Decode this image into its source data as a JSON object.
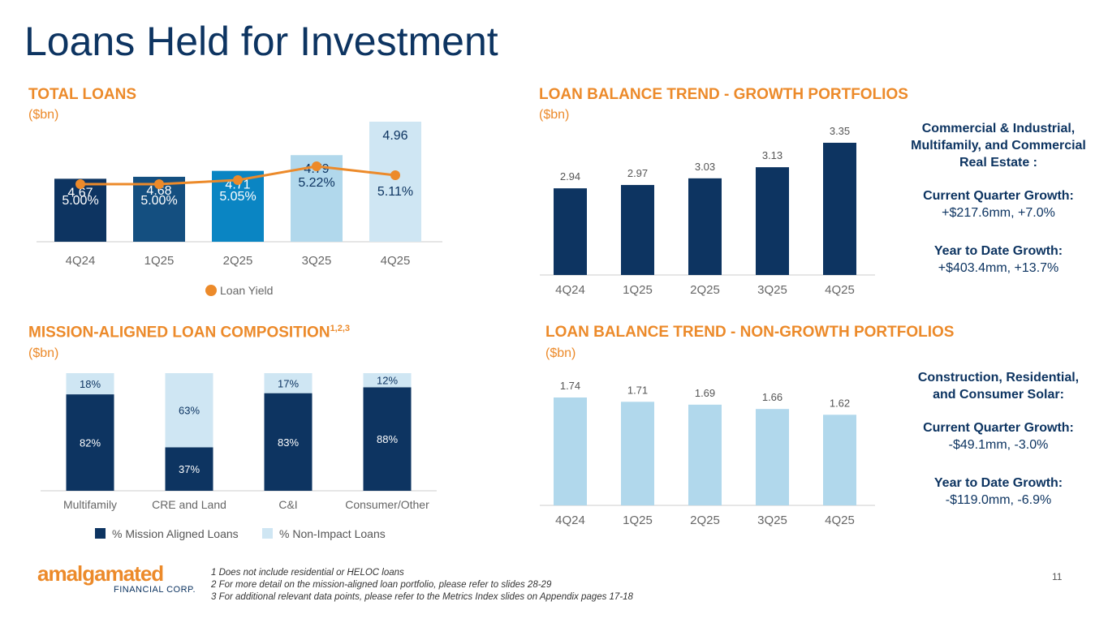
{
  "page_title": "Loans Held for Investment",
  "page_number": "11",
  "colors": {
    "navy": "#0d3461",
    "orange": "#ec8a2a",
    "light_blue": "#b1d8ec",
    "pale_blue": "#cfe6f3"
  },
  "footnotes": [
    "1 Does not include residential or HELOC loans",
    "2 For more detail on the mission-aligned loan portfolio, please refer to slides 28-29",
    "3 For additional relevant data points, please refer to the Metrics Index slides on Appendix pages 17-18"
  ],
  "logo": {
    "word": "amalgamated",
    "sub": "FINANCIAL CORP."
  },
  "sections": {
    "total": {
      "title": "TOTAL LOANS",
      "unit": "($bn)"
    },
    "growth": {
      "title": "LOAN BALANCE TREND - GROWTH PORTFOLIOS",
      "unit": "($bn)"
    },
    "mission": {
      "title": "MISSION-ALIGNED LOAN COMPOSITION",
      "sup": "1,2,3",
      "unit": "($bn)"
    },
    "nongrowth": {
      "title": "LOAN BALANCE TREND - NON-GROWTH PORTFOLIOS",
      "unit": "($bn)"
    }
  },
  "growth_side": {
    "heading": "Commercial & Industrial, Multifamily, and Commercial Real Estate :",
    "cq_label": "Current Quarter Growth:",
    "cq_value": "+$217.6mm, +7.0%",
    "ytd_label": "Year to Date Growth:",
    "ytd_value": "+$403.4mm, +13.7%"
  },
  "nongrowth_side": {
    "heading": "Construction, Residential, and Consumer Solar:",
    "cq_label": "Current Quarter Growth:",
    "cq_value": "-$49.1mm, -3.0%",
    "ytd_label": "Year to Date Growth:",
    "ytd_value": "-$119.0mm, -6.9%"
  },
  "chart_data": [
    {
      "id": "total",
      "type": "bar",
      "title": "TOTAL LOANS",
      "ylabel": "($bn)",
      "categories": [
        "4Q24",
        "1Q25",
        "2Q25",
        "3Q25",
        "4Q25"
      ],
      "values": [
        4.67,
        4.68,
        4.71,
        4.79,
        4.96
      ],
      "value_labels": [
        "4.67",
        "4.68",
        "4.71",
        "4.79",
        "4.96"
      ],
      "bar_colors": [
        "#0d3461",
        "#144f80",
        "#0a85c3",
        "#b1d8ec",
        "#cfe6f3"
      ],
      "line_series": {
        "name": "Loan Yield",
        "values": [
          5.0,
          5.0,
          5.05,
          5.22,
          5.11
        ],
        "labels": [
          "5.00%",
          "5.00%",
          "5.05%",
          "5.22%",
          "5.11%"
        ]
      }
    },
    {
      "id": "growth",
      "type": "bar",
      "title": "LOAN BALANCE TREND - GROWTH PORTFOLIOS",
      "ylabel": "($bn)",
      "categories": [
        "4Q24",
        "1Q25",
        "2Q25",
        "3Q25",
        "4Q25"
      ],
      "values": [
        2.94,
        2.97,
        3.03,
        3.13,
        3.35
      ],
      "value_labels": [
        "2.94",
        "2.97",
        "3.03",
        "3.13",
        "3.35"
      ],
      "color": "#0d3461"
    },
    {
      "id": "mission",
      "type": "bar",
      "stacked": true,
      "title": "MISSION-ALIGNED LOAN COMPOSITION",
      "ylabel": "($bn)",
      "categories": [
        "Multifamily",
        "CRE and Land",
        "C&I",
        "Consumer/Other"
      ],
      "series": [
        {
          "name": "% Mission Aligned Loans",
          "values": [
            82,
            37,
            83,
            88
          ],
          "labels": [
            "82%",
            "37%",
            "83%",
            "88%"
          ],
          "color": "#0d3461"
        },
        {
          "name": "% Non-Impact Loans",
          "values": [
            18,
            63,
            17,
            12
          ],
          "labels": [
            "18%",
            "63%",
            "17%",
            "12%"
          ],
          "color": "#cfe6f3"
        }
      ]
    },
    {
      "id": "nongrowth",
      "type": "bar",
      "title": "LOAN BALANCE TREND - NON-GROWTH PORTFOLIOS",
      "ylabel": "($bn)",
      "categories": [
        "4Q24",
        "1Q25",
        "2Q25",
        "3Q25",
        "4Q25"
      ],
      "values": [
        1.74,
        1.71,
        1.69,
        1.66,
        1.62
      ],
      "value_labels": [
        "1.74",
        "1.71",
        "1.69",
        "1.66",
        "1.62"
      ],
      "color": "#b1d8ec"
    }
  ]
}
